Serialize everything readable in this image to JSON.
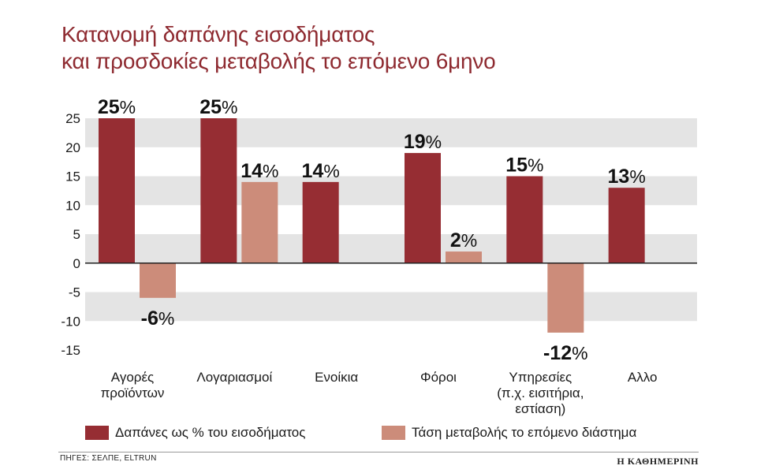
{
  "title": {
    "line1": "Κατανομή δαπάνης εισοδήματος",
    "line2": "και προσδοκίες μεταβολής το επόμενο 6μηνο"
  },
  "colors": {
    "title": "#8e2a30",
    "series1": "#962d33",
    "series2": "#cc8c7a",
    "band": "#e4e4e4"
  },
  "chart_data": {
    "type": "bar",
    "categories": [
      [
        "Αγορές",
        "προϊόντων"
      ],
      [
        "Λογαριασμοί"
      ],
      [
        "Ενοίκια"
      ],
      [
        "Φόροι"
      ],
      [
        "Υπηρεσίες",
        "(π.χ. εισιτήρια,",
        "εστίαση)"
      ],
      [
        "Αλλο"
      ]
    ],
    "series": [
      {
        "name": "Δαπάνες ως % του εισοδήματος",
        "values": [
          25,
          25,
          14,
          19,
          15,
          13
        ],
        "labels": [
          "25%",
          "25%",
          "14%",
          "19%",
          "15%",
          "13%"
        ]
      },
      {
        "name": "Τάση μεταβολής το επόμενο διάστημα",
        "values": [
          -6,
          14,
          null,
          2,
          -12,
          null
        ],
        "labels": [
          "-6%",
          "14%",
          "",
          "2%",
          "-12%",
          ""
        ]
      }
    ],
    "yticks": [
      25,
      20,
      15,
      10,
      5,
      0,
      -5,
      -10,
      -15
    ],
    "ylim": [
      -15,
      25
    ],
    "grid": "alternating horizontal bands",
    "legend": "bottom"
  },
  "footer": {
    "source": "ΠΗΓΕΣ: ΣΕΛΠΕ, ELTRUN",
    "brand": "Η ΚΑΘΗΜΕΡΙΝΗ"
  }
}
